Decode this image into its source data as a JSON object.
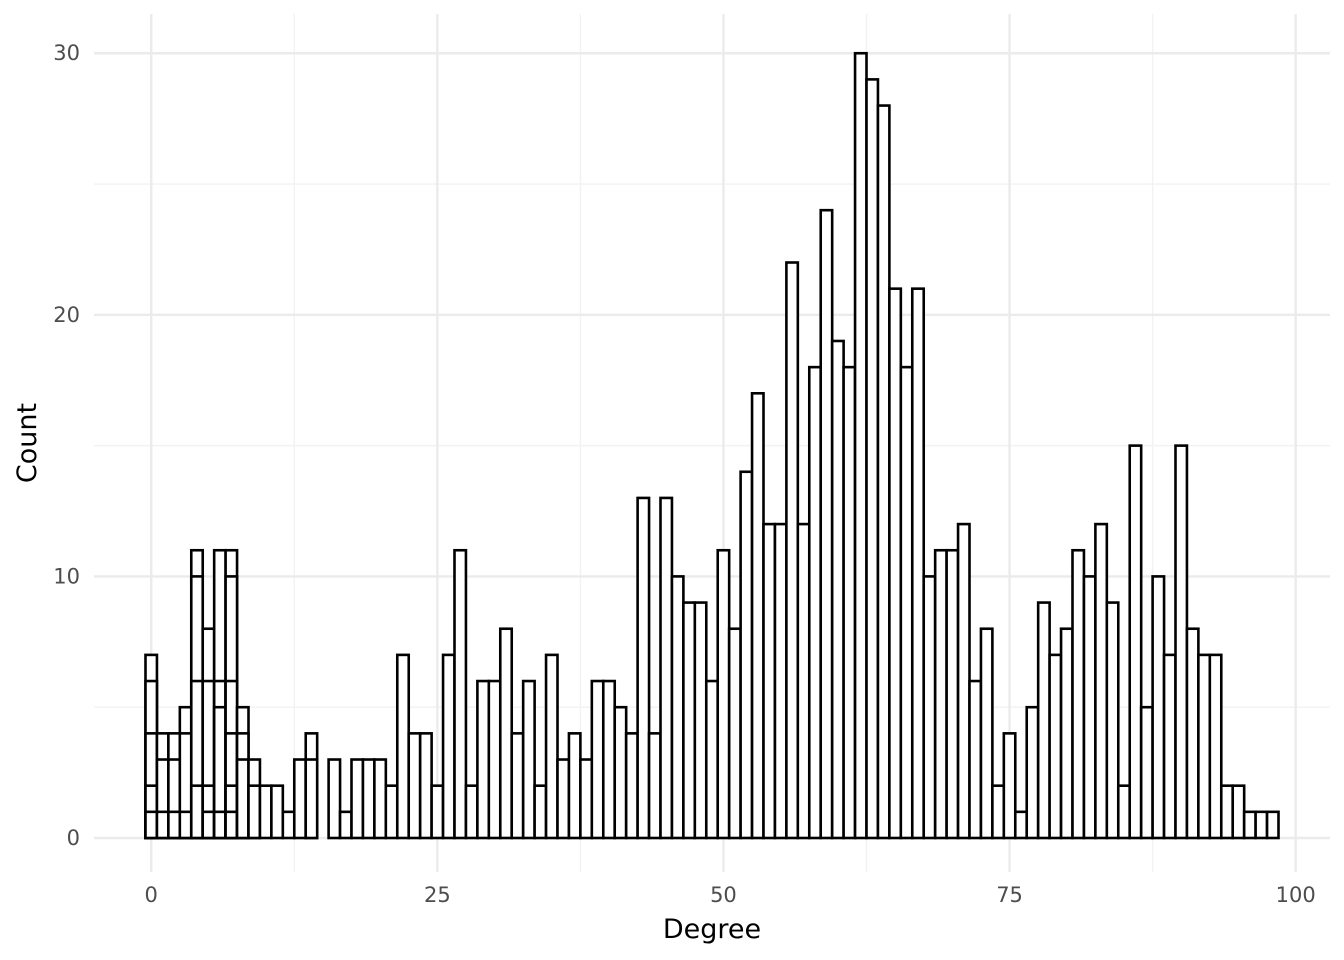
{
  "chart_data": {
    "type": "bar",
    "title": "",
    "xlabel": "Degree",
    "ylabel": "Count",
    "xlim": [
      -5,
      103
    ],
    "ylim": [
      -1.3,
      31.5
    ],
    "x_ticks": [
      0,
      25,
      50,
      75,
      100
    ],
    "y_ticks": [
      0,
      10,
      20,
      30
    ],
    "grid": true,
    "legend": "none",
    "bin_width": 1,
    "bins": [
      {
        "x": 0,
        "y": 7
      },
      {
        "x": 0,
        "y": 6
      },
      {
        "x": 0,
        "y": 4
      },
      {
        "x": 0,
        "y": 2
      },
      {
        "x": 0,
        "y": 1
      },
      {
        "x": 1,
        "y": 4
      },
      {
        "x": 1,
        "y": 3
      },
      {
        "x": 1,
        "y": 1
      },
      {
        "x": 2,
        "y": 4
      },
      {
        "x": 2,
        "y": 3
      },
      {
        "x": 2,
        "y": 1
      },
      {
        "x": 3,
        "y": 5
      },
      {
        "x": 3,
        "y": 4
      },
      {
        "x": 3,
        "y": 1
      },
      {
        "x": 4,
        "y": 11
      },
      {
        "x": 4,
        "y": 10
      },
      {
        "x": 4,
        "y": 6
      },
      {
        "x": 4,
        "y": 2
      },
      {
        "x": 5,
        "y": 8
      },
      {
        "x": 5,
        "y": 6
      },
      {
        "x": 5,
        "y": 2
      },
      {
        "x": 5,
        "y": 1
      },
      {
        "x": 6,
        "y": 11
      },
      {
        "x": 6,
        "y": 6
      },
      {
        "x": 6,
        "y": 5
      },
      {
        "x": 6,
        "y": 1
      },
      {
        "x": 7,
        "y": 11
      },
      {
        "x": 7,
        "y": 10
      },
      {
        "x": 7,
        "y": 6
      },
      {
        "x": 7,
        "y": 4
      },
      {
        "x": 7,
        "y": 2
      },
      {
        "x": 7,
        "y": 1
      },
      {
        "x": 8,
        "y": 5
      },
      {
        "x": 8,
        "y": 4
      },
      {
        "x": 8,
        "y": 3
      },
      {
        "x": 9,
        "y": 3
      },
      {
        "x": 9,
        "y": 2
      },
      {
        "x": 10,
        "y": 2
      },
      {
        "x": 11,
        "y": 2
      },
      {
        "x": 12,
        "y": 1
      },
      {
        "x": 13,
        "y": 3
      },
      {
        "x": 14,
        "y": 4
      },
      {
        "x": 14,
        "y": 3
      },
      {
        "x": 16,
        "y": 3
      },
      {
        "x": 17,
        "y": 1
      },
      {
        "x": 18,
        "y": 3
      },
      {
        "x": 19,
        "y": 3
      },
      {
        "x": 20,
        "y": 3
      },
      {
        "x": 21,
        "y": 2
      },
      {
        "x": 22,
        "y": 7
      },
      {
        "x": 23,
        "y": 4
      },
      {
        "x": 24,
        "y": 4
      },
      {
        "x": 25,
        "y": 2
      },
      {
        "x": 26,
        "y": 7
      },
      {
        "x": 27,
        "y": 11
      },
      {
        "x": 28,
        "y": 2
      },
      {
        "x": 29,
        "y": 6
      },
      {
        "x": 30,
        "y": 6
      },
      {
        "x": 31,
        "y": 8
      },
      {
        "x": 32,
        "y": 4
      },
      {
        "x": 33,
        "y": 6
      },
      {
        "x": 34,
        "y": 2
      },
      {
        "x": 35,
        "y": 7
      },
      {
        "x": 36,
        "y": 3
      },
      {
        "x": 37,
        "y": 4
      },
      {
        "x": 38,
        "y": 3
      },
      {
        "x": 39,
        "y": 6
      },
      {
        "x": 40,
        "y": 6
      },
      {
        "x": 41,
        "y": 5
      },
      {
        "x": 42,
        "y": 4
      },
      {
        "x": 43,
        "y": 13
      },
      {
        "x": 44,
        "y": 4
      },
      {
        "x": 45,
        "y": 13
      },
      {
        "x": 46,
        "y": 10
      },
      {
        "x": 47,
        "y": 9
      },
      {
        "x": 48,
        "y": 9
      },
      {
        "x": 49,
        "y": 6
      },
      {
        "x": 50,
        "y": 11
      },
      {
        "x": 51,
        "y": 8
      },
      {
        "x": 52,
        "y": 14
      },
      {
        "x": 53,
        "y": 17
      },
      {
        "x": 54,
        "y": 12
      },
      {
        "x": 55,
        "y": 12
      },
      {
        "x": 56,
        "y": 22
      },
      {
        "x": 57,
        "y": 12
      },
      {
        "x": 58,
        "y": 18
      },
      {
        "x": 59,
        "y": 24
      },
      {
        "x": 60,
        "y": 19
      },
      {
        "x": 61,
        "y": 18
      },
      {
        "x": 62,
        "y": 30
      },
      {
        "x": 63,
        "y": 29
      },
      {
        "x": 64,
        "y": 28
      },
      {
        "x": 65,
        "y": 21
      },
      {
        "x": 66,
        "y": 18
      },
      {
        "x": 67,
        "y": 21
      },
      {
        "x": 68,
        "y": 10
      },
      {
        "x": 69,
        "y": 11
      },
      {
        "x": 70,
        "y": 11
      },
      {
        "x": 71,
        "y": 12
      },
      {
        "x": 72,
        "y": 6
      },
      {
        "x": 73,
        "y": 8
      },
      {
        "x": 74,
        "y": 2
      },
      {
        "x": 75,
        "y": 4
      },
      {
        "x": 76,
        "y": 1
      },
      {
        "x": 77,
        "y": 5
      },
      {
        "x": 78,
        "y": 9
      },
      {
        "x": 79,
        "y": 7
      },
      {
        "x": 80,
        "y": 8
      },
      {
        "x": 81,
        "y": 11
      },
      {
        "x": 82,
        "y": 10
      },
      {
        "x": 83,
        "y": 12
      },
      {
        "x": 84,
        "y": 9
      },
      {
        "x": 85,
        "y": 2
      },
      {
        "x": 86,
        "y": 15
      },
      {
        "x": 87,
        "y": 5
      },
      {
        "x": 88,
        "y": 10
      },
      {
        "x": 89,
        "y": 7
      },
      {
        "x": 90,
        "y": 15
      },
      {
        "x": 91,
        "y": 8
      },
      {
        "x": 92,
        "y": 7
      },
      {
        "x": 93,
        "y": 7
      },
      {
        "x": 94,
        "y": 2
      },
      {
        "x": 95,
        "y": 2
      },
      {
        "x": 96,
        "y": 1
      },
      {
        "x": 97,
        "y": 1
      },
      {
        "x": 98,
        "y": 1
      }
    ]
  }
}
